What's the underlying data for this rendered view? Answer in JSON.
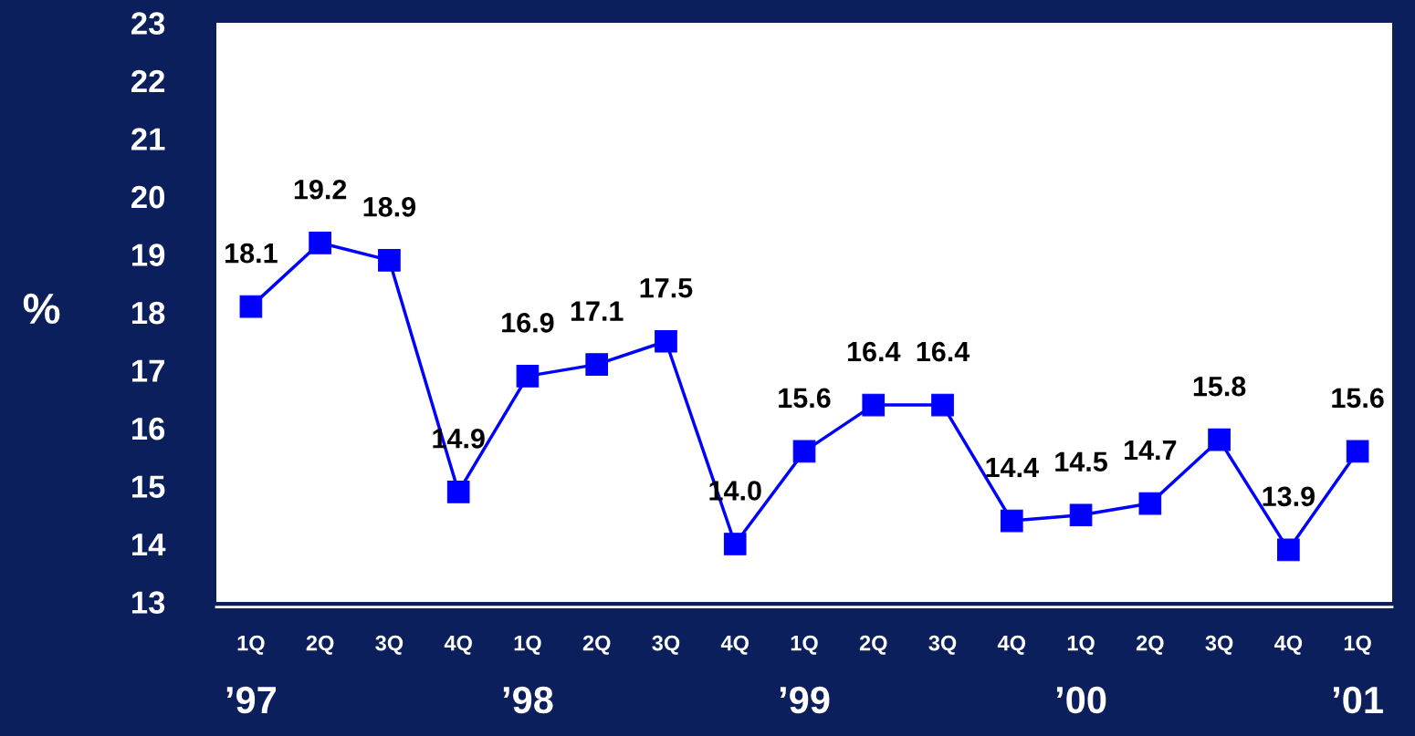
{
  "chart_data": {
    "type": "line",
    "categories": [
      "1Q",
      "2Q",
      "3Q",
      "4Q",
      "1Q",
      "2Q",
      "3Q",
      "4Q",
      "1Q",
      "2Q",
      "3Q",
      "4Q",
      "1Q",
      "2Q",
      "3Q",
      "4Q",
      "1Q"
    ],
    "series": [
      {
        "color": "#0000ff",
        "values": [
          18.1,
          19.2,
          18.9,
          14.9,
          16.9,
          17.1,
          17.5,
          14.0,
          15.6,
          16.4,
          16.4,
          14.4,
          14.5,
          14.7,
          15.8,
          13.9,
          15.6
        ],
        "value_labels": [
          "18.1",
          "19.2",
          "18.9",
          "14.9",
          "16.9",
          "17.1",
          "17.5",
          "14.0",
          "15.6",
          "16.4",
          "16.4",
          "14.4",
          "14.5",
          "14.7",
          "15.8",
          "13.9",
          "15.6"
        ]
      }
    ],
    "ylabel": "%",
    "ylim": [
      13,
      23
    ],
    "yticks": [
      13,
      14,
      15,
      16,
      17,
      18,
      19,
      20,
      21,
      22,
      23
    ],
    "annotations": [
      "’97",
      "’98",
      "’99",
      "’00",
      "’01"
    ],
    "marker": "square",
    "line_style": "solid",
    "grid": false
  }
}
